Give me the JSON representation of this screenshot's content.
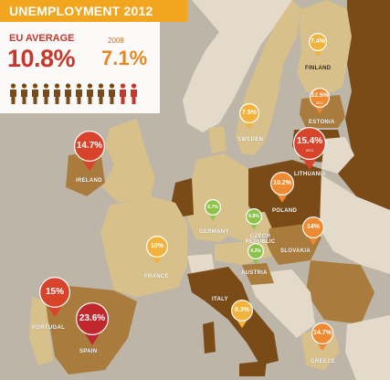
{
  "title": "UNEMPLOYMENT 2012",
  "eu": {
    "label": "EU AVERAGE",
    "value": "10.8%",
    "prev_year": "2008",
    "prev_value": "7.1%"
  },
  "icon_bar": {
    "total": 12,
    "highlighted": 2,
    "color_normal": "#7a4a17",
    "color_highlight": "#c7372a"
  },
  "colors": {
    "sea": "#bdb6a8",
    "dark_land": "#7a4a17",
    "mid_land": "#a97b3c",
    "light_land": "#d8c08a",
    "non_eu": "#e3dac9"
  },
  "countries": [
    {
      "name": "IRELAND",
      "value": "14.7%"
    },
    {
      "name": "FINLAND",
      "value": "7.4%"
    },
    {
      "name": "SWEDEN",
      "value": "7.5%"
    },
    {
      "name": "ESTONIA",
      "value": "12.5%",
      "sub": "2011"
    },
    {
      "name": "LITHUANIA",
      "value": "15.4%",
      "sub": "2011"
    },
    {
      "name": "POLAND",
      "value": "10.2%"
    },
    {
      "name": "GERMANY",
      "value": "5.7%"
    },
    {
      "name": "CZECH REPUBLIC",
      "value": "6.8%"
    },
    {
      "name": "AUSTRIA",
      "value": "4.2%"
    },
    {
      "name": "SLOVAKIA",
      "value": "14%"
    },
    {
      "name": "FRANCE",
      "value": "10%"
    },
    {
      "name": "ITALY",
      "value": "9.3%"
    },
    {
      "name": "PORTUGAL",
      "value": "15%"
    },
    {
      "name": "SPAIN",
      "value": "23.6%"
    },
    {
      "name": "GREECE",
      "value": "14.7%"
    }
  ]
}
